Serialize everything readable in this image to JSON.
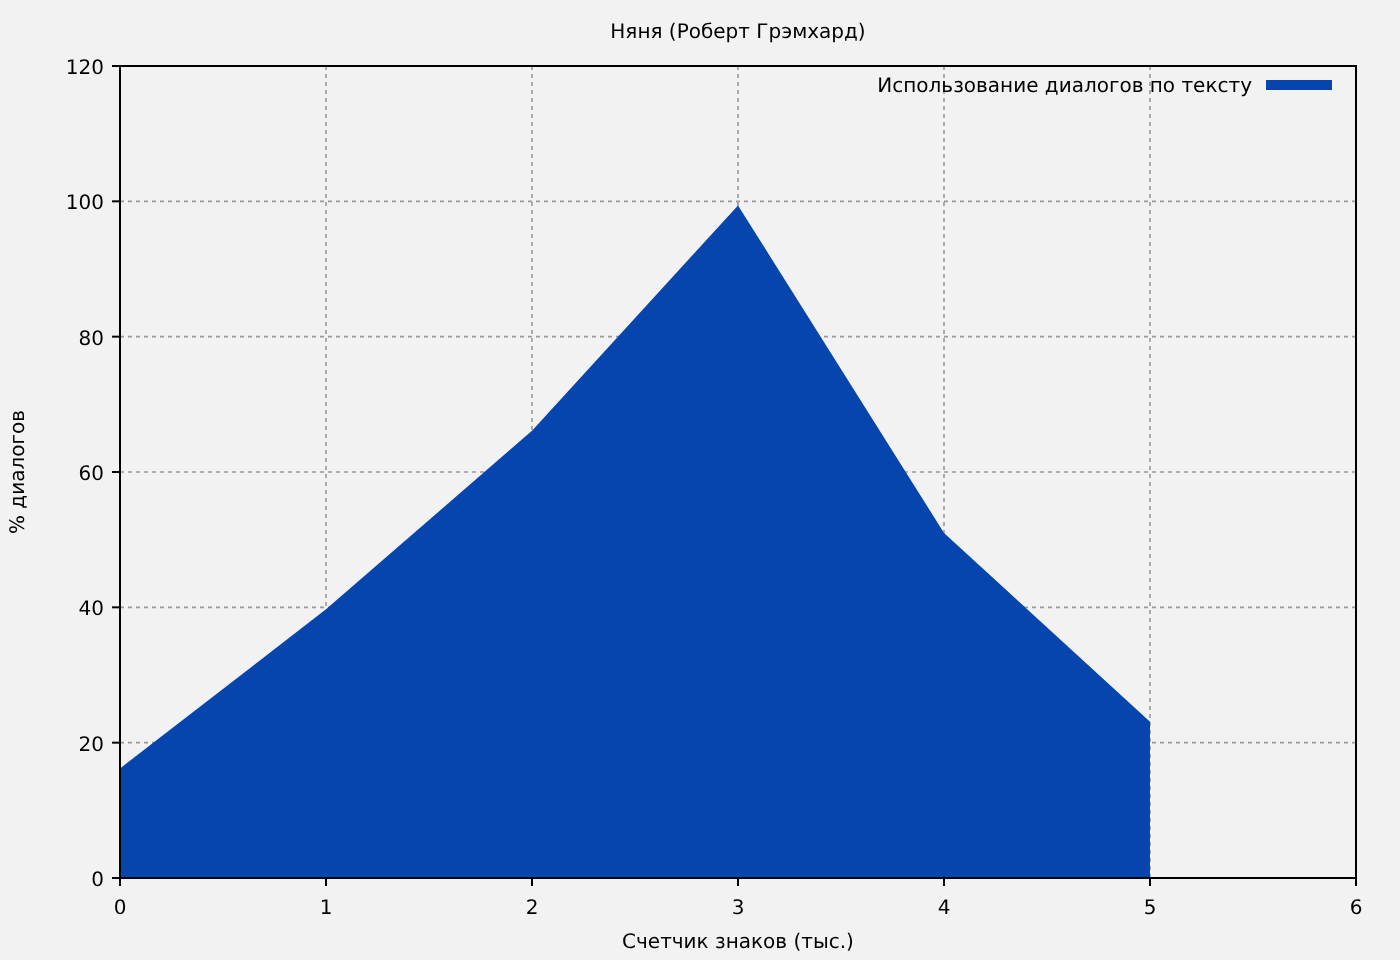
{
  "chart_data": {
    "type": "area",
    "title": "Няня (Роберт Грэмхард)",
    "xlabel": "Счетчик знаков (тыс.)",
    "ylabel": "% диалогов",
    "x": [
      0,
      1,
      2,
      3,
      4,
      5
    ],
    "series": [
      {
        "name": "Использование диалогов по тексту",
        "color": "#0645ad",
        "values": [
          16.2,
          39.7,
          66.1,
          99.4,
          51,
          23.1
        ]
      }
    ],
    "xlim": [
      0,
      6
    ],
    "xticks": [
      0,
      1,
      2,
      3,
      4,
      5,
      6
    ],
    "ylim": [
      0,
      120
    ],
    "yticks": [
      0,
      20,
      40,
      60,
      80,
      100,
      120
    ],
    "grid": true,
    "legend": "top right"
  }
}
